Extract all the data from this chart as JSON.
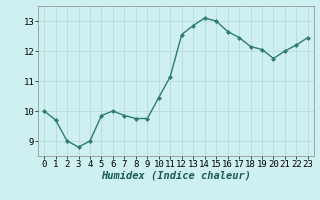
{
  "x": [
    0,
    1,
    2,
    3,
    4,
    5,
    6,
    7,
    8,
    9,
    10,
    11,
    12,
    13,
    14,
    15,
    16,
    17,
    18,
    19,
    20,
    21,
    22,
    23
  ],
  "y": [
    10.0,
    9.7,
    9.0,
    8.8,
    9.0,
    9.85,
    10.0,
    9.85,
    9.75,
    9.75,
    10.45,
    11.15,
    12.55,
    12.85,
    13.1,
    13.0,
    12.65,
    12.45,
    12.15,
    12.05,
    11.75,
    12.0,
    12.2,
    12.45
  ],
  "line_color": "#2e7d6e",
  "marker": "D",
  "marker_size": 2.0,
  "bg_color": "#cff0f0",
  "grid_color": "#b8dada",
  "xlabel": "Humidex (Indice chaleur)",
  "xlabel_fontsize": 7.5,
  "tick_fontsize": 6.5,
  "ylim": [
    8.5,
    13.5
  ],
  "xlim": [
    -0.5,
    23.5
  ],
  "yticks": [
    9,
    10,
    11,
    12,
    13
  ],
  "xticks": [
    0,
    1,
    2,
    3,
    4,
    5,
    6,
    7,
    8,
    9,
    10,
    11,
    12,
    13,
    14,
    15,
    16,
    17,
    18,
    19,
    20,
    21,
    22,
    23
  ],
  "line_width": 1.0
}
